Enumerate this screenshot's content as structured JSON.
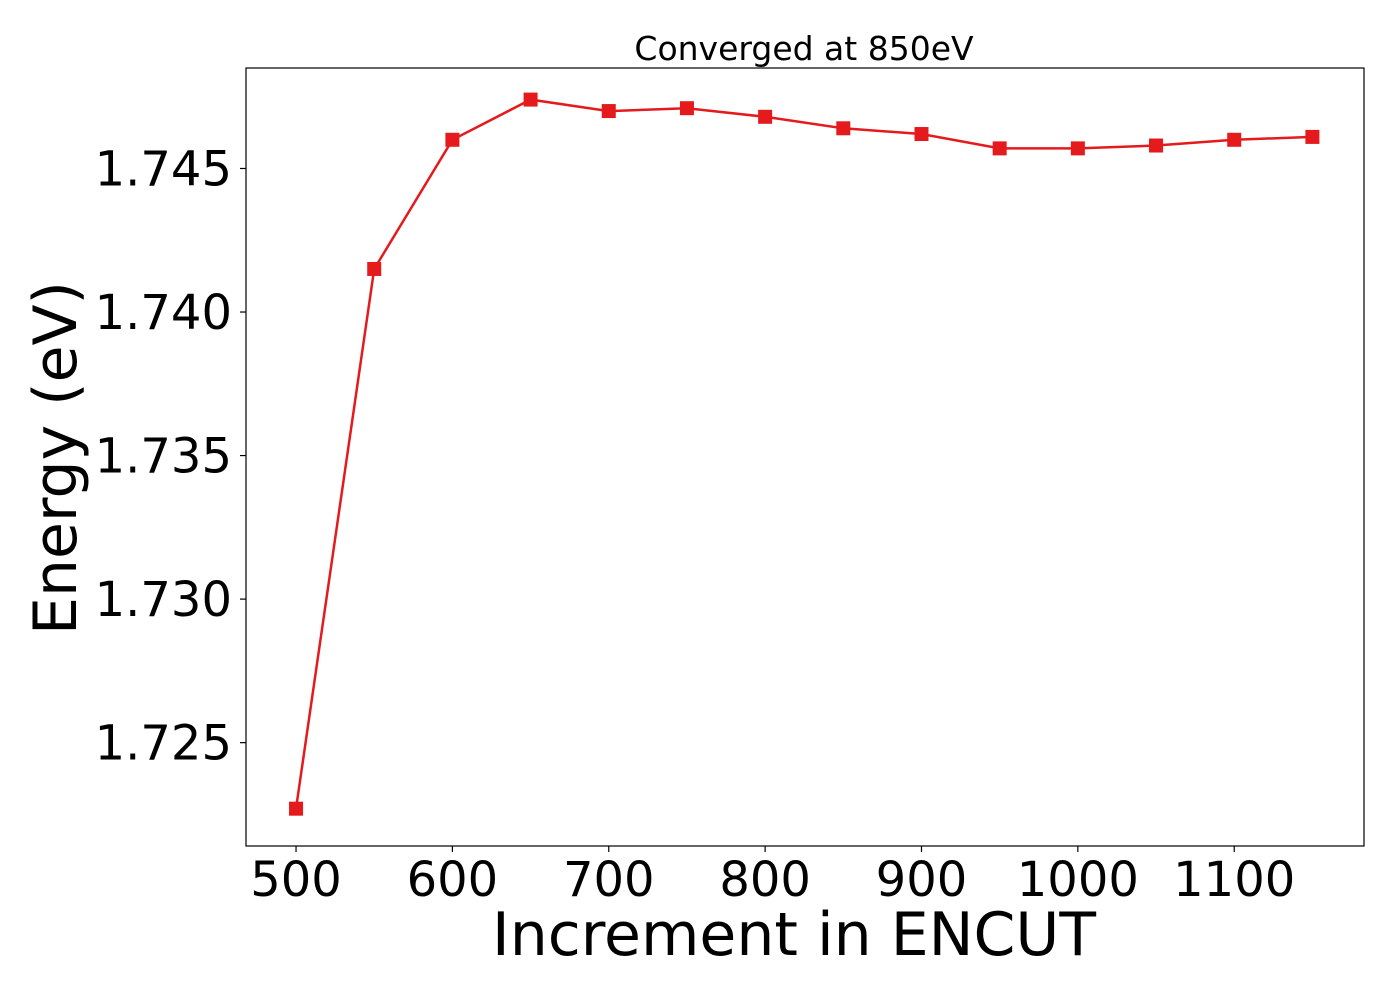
{
  "chart_data": {
    "type": "line",
    "title": "Converged at 850eV",
    "xlabel": "Increment in ENCUT",
    "ylabel": "Energy (eV)",
    "xlim": [
      468,
      1183
    ],
    "ylim": [
      1.7214,
      1.7485
    ],
    "x_ticks": [
      500,
      600,
      700,
      800,
      900,
      1000,
      1100
    ],
    "y_ticks": [
      1.725,
      1.73,
      1.735,
      1.74,
      1.745
    ],
    "x_tick_labels": [
      "500",
      "600",
      "700",
      "800",
      "900",
      "1000",
      "1100"
    ],
    "y_tick_labels": [
      "1.725",
      "1.730",
      "1.735",
      "1.740",
      "1.745"
    ],
    "grid": false,
    "marker": "square",
    "color": "#e41a1c",
    "series": [
      {
        "x": [
          500,
          550,
          600,
          650,
          700,
          750,
          800,
          850,
          900,
          950,
          1000,
          1050,
          1100,
          1150
        ],
        "y": [
          1.7227,
          1.7415,
          1.746,
          1.7474,
          1.747,
          1.7471,
          1.7468,
          1.7464,
          1.7462,
          1.7457,
          1.7457,
          1.7458,
          1.746,
          1.7461
        ]
      }
    ]
  }
}
